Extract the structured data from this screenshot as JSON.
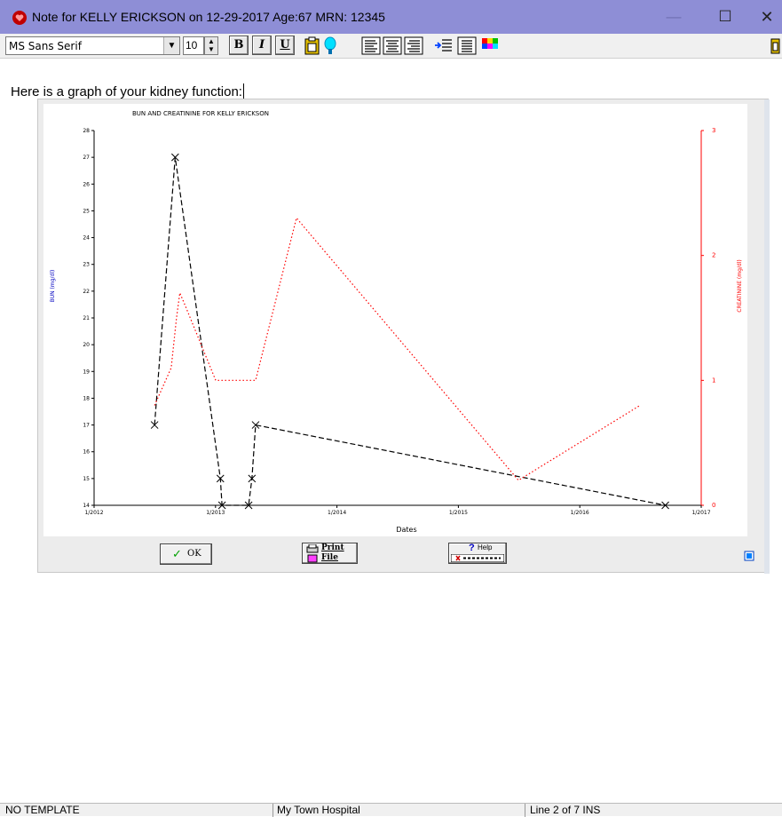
{
  "window": {
    "title": "Note for KELLY ERICKSON on 12-29-2017 Age:67  MRN: 12345",
    "minimize_glyph": "—",
    "maximize_glyph": "☐",
    "close_glyph": "✕"
  },
  "toolbar": {
    "font_name": "MS Sans Serif",
    "font_size": "10",
    "bold_label": "B",
    "italic_label": "I",
    "underline_label": "U",
    "icons": [
      "paste-icon",
      "highlight-icon",
      "align-left-icon",
      "align-center-icon",
      "align-right-icon",
      "indent-icon",
      "bullet-list-icon",
      "color-palette-icon"
    ]
  },
  "document": {
    "line1": "Here is a graph of your kidney function:"
  },
  "graph_window": {
    "ok_label": "OK",
    "print_label": "Print",
    "file_label": "File",
    "help_label": "Help"
  },
  "chart_data": {
    "type": "line",
    "title": "BUN AND CREATININE FOR KELLY ERICKSON",
    "xlabel": "Dates",
    "ylabel_left": "BUN (mg/dl)",
    "ylabel_right": "CREATININE (mg/dl)",
    "x_ticks": [
      "1/2012",
      "1/2013",
      "1/2014",
      "1/2015",
      "1/2016",
      "1/2017"
    ],
    "xlim": [
      "2012-01-01",
      "2017-01-01"
    ],
    "ylim_left": [
      14,
      28
    ],
    "ylim_right": [
      0,
      3
    ],
    "y_ticks_left": [
      14,
      15,
      16,
      17,
      18,
      19,
      20,
      21,
      22,
      23,
      24,
      25,
      26,
      27,
      28
    ],
    "y_ticks_right": [
      0,
      1,
      2,
      3
    ],
    "series": [
      {
        "name": "BUN",
        "axis": "left",
        "color": "#000000",
        "style": "dashed-x-markers",
        "x": [
          "2012-07-01",
          "2012-09-01",
          "2013-01-15",
          "2013-01-20",
          "2013-04-10",
          "2013-04-20",
          "2013-05-01",
          "2016-09-15"
        ],
        "y": [
          17,
          27,
          15,
          14,
          14,
          15,
          17,
          14
        ]
      },
      {
        "name": "CREATININE",
        "axis": "right",
        "color": "#ff0000",
        "style": "dotted",
        "x": [
          "2012-07-01",
          "2012-08-20",
          "2012-09-05",
          "2012-09-15",
          "2012-10-01",
          "2013-01-01",
          "2013-05-01",
          "2013-09-01",
          "2015-07-01",
          "2016-07-01"
        ],
        "y": [
          0.8,
          1.1,
          1.5,
          1.7,
          1.6,
          1.0,
          1.0,
          2.3,
          0.2,
          0.8
        ]
      }
    ],
    "grid": false,
    "legend": "none"
  },
  "status": {
    "template": "NO TEMPLATE",
    "facility": "My Town Hospital",
    "position": "Line 2 of 7  INS"
  }
}
